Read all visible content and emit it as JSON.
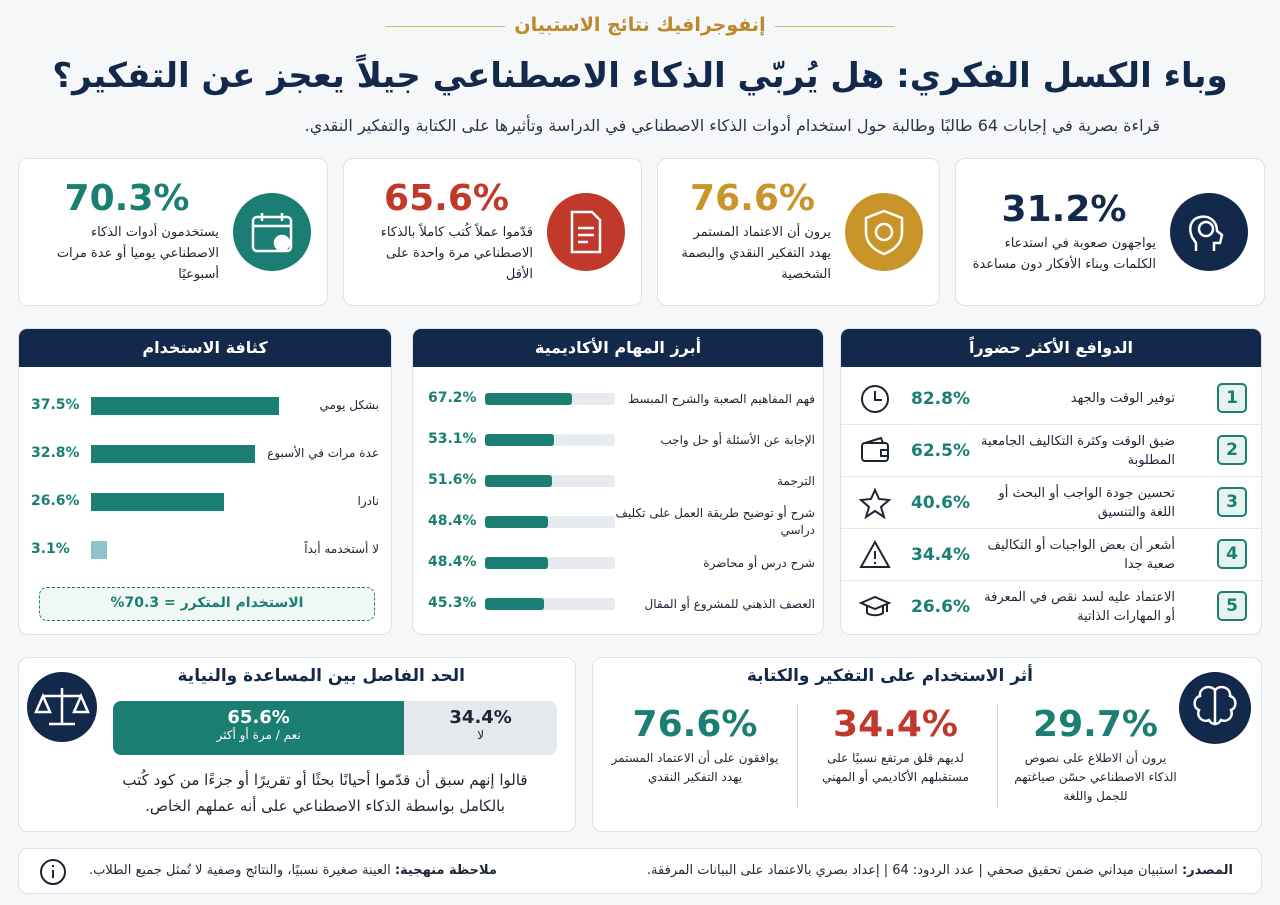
{
  "header": {
    "kicker": "إنفوجرافيك نتائج الاستبيان",
    "title": "وباء الكسل الفكري: هل يُربّي الذكاء الاصطناعي جيلاً يعجز عن التفكير؟",
    "subtitle": "قراءة بصرية في إجابات 64 طالبًا وطالبة حول استخدام أدوات الذكاء الاصطناعي في الدراسة وتأثيرها على الكتابة والتفكير النقدي."
  },
  "stats": [
    {
      "value": "31.2%",
      "text": "يواجهون صعوبة في استدعاء الكلمات وبناء الأفكار دون مساعدة",
      "color": "#13294b"
    },
    {
      "value": "76.6%",
      "text": "يرون أن الاعتماد المستمر يهدد التفكير النقدي والبصمة الشخصية",
      "color": "#c9952b"
    },
    {
      "value": "65.6%",
      "text": "قدّموا عملاً كُتب كاملاً بالذكاء الاصطناعي مرة واحدة على الأقل",
      "color": "#c0392b"
    },
    {
      "value": "70.3%",
      "text": "يستخدمون أدوات الذكاء الاصطناعي يوميا أو عدة مرات أسبوعيًا",
      "color": "#1a7f72"
    }
  ],
  "motives": {
    "title": "الدوافع الأكثر حضوراً",
    "items": [
      {
        "rank": 1,
        "label": "توفير الوقت والجهد",
        "value": "82.8%"
      },
      {
        "rank": 2,
        "label": "ضيق الوقت وكثرة التكاليف الجامعية المطلوبة",
        "value": "62.5%"
      },
      {
        "rank": 3,
        "label": "تحسين جودة الواجب أو البحث أو اللغة والتنسيق",
        "value": "40.6%"
      },
      {
        "rank": 4,
        "label": "أشعر أن بعض الواجبات أو التكاليف صعبة جدا",
        "value": "34.4%"
      },
      {
        "rank": 5,
        "label": "الاعتماد عليه لسد نقص في المعرفة أو المهارات الذاتية",
        "value": "26.6%"
      }
    ]
  },
  "tasks": {
    "title": "أبرز المهام الأكاديمية",
    "items": [
      {
        "label": "فهم المفاهيم الصعبة والشرح المبسط",
        "value": 67.2,
        "value_label": "67.2%"
      },
      {
        "label": "الإجابة عن الأسئلة أو حل واجب",
        "value": 53.1,
        "value_label": "53.1%"
      },
      {
        "label": "الترجمة",
        "value": 51.6,
        "value_label": "51.6%"
      },
      {
        "label": "شرح أو توضيح طريقة العمل على تكليف دراسي",
        "value": 48.4,
        "value_label": "48.4%"
      },
      {
        "label": "شرح درس أو محاضرة",
        "value": 48.4,
        "value_label": "48.4%"
      },
      {
        "label": "العصف الذهني للمشروع أو المقال",
        "value": 45.3,
        "value_label": "45.3%"
      }
    ]
  },
  "usage": {
    "title": "كثافة الاستخدام",
    "items": [
      {
        "label": "بشكل يومي",
        "value": 37.5,
        "value_label": "37.5%",
        "color": "#1a7f72"
      },
      {
        "label": "عدة مرات في الأسبوع",
        "value": 32.8,
        "value_label": "32.8%",
        "color": "#1a7f72"
      },
      {
        "label": "نادرا",
        "value": 26.6,
        "value_label": "26.6%",
        "color": "#1a7f72"
      },
      {
        "label": "لا أستخدمه أبداً",
        "value": 3.1,
        "value_label": "3.1%",
        "color": "#8fc3cc"
      }
    ],
    "total": "الاستخدام المتكرر = 70.3%"
  },
  "balance": {
    "title": "الحد الفاصل بين المساعدة والنياية",
    "yes": {
      "value": 65.6,
      "value_label": "65.6%",
      "label": "نعم / مرة أو أكثر"
    },
    "no": {
      "value": 34.4,
      "value_label": "34.4%",
      "label": "لا"
    },
    "quote": "قالوا إنهم سبق أن قدّموا أحيانًا بحثًا أو تقريرًا أو جزءًا من كود كُتب بالكامل بواسطة الذكاء الاصطناعي على أنه عملهم الخاص."
  },
  "impact": {
    "title": "أثر الاستخدام على التفكير والكتابة",
    "items": [
      {
        "value": "29.7%",
        "text": "يرون أن الاطلاع على نصوص الذكاء الاصطناعي حسّن صياغتهم للجمل واللغة"
      },
      {
        "value": "34.4%",
        "text": "لديهم قلق مرتفع نسبيًا على مستقبلهم الأكاديمي أو المهني",
        "color": "#c0392b"
      },
      {
        "value": "76.6%",
        "text": "يوافقون على أن الاعتماد المستمر يهدد التفكير النقدي"
      }
    ]
  },
  "footer": {
    "source_label": "المصدر:",
    "source": "استبيان ميداني ضمن تحقيق صحفي | عدد الردود: 64 | إعداد بصري بالاعتماد على البيانات المرفقة.",
    "note_label": "ملاحظة منهجية:",
    "note": "العينة صغيرة نسبيًا، والنتائج وصفية لا تُمثل جميع الطلاب."
  }
}
